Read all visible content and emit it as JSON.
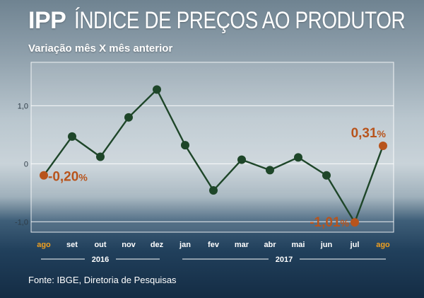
{
  "header": {
    "title_bold": "IPP",
    "title_rest": "ÍNDICE  DE PREÇOS AO PRODUTOR",
    "subtitle": "Variação mês X mês anterior",
    "source": "Fonte: IBGE, Diretoria de Pesquisas"
  },
  "colors": {
    "line": "#1e4629",
    "point": "#1e4629",
    "highlight": "#b8541c",
    "highlight_tick": "#f0a020",
    "gridline": "#ffffff"
  },
  "chart_data": {
    "type": "line",
    "categories": [
      "ago",
      "set",
      "out",
      "nov",
      "dez",
      "jan",
      "fev",
      "mar",
      "abr",
      "mai",
      "jun",
      "jul",
      "ago"
    ],
    "years": [
      {
        "label": "2016",
        "from": 0,
        "to": 4
      },
      {
        "label": "2017",
        "from": 5,
        "to": 12
      }
    ],
    "values": [
      -0.2,
      0.47,
      0.12,
      0.8,
      1.28,
      0.32,
      -0.46,
      0.07,
      -0.11,
      0.11,
      -0.2,
      -1.01,
      0.31
    ],
    "highlight_indices": [
      0,
      11,
      12
    ],
    "annotations": [
      {
        "index": 0,
        "label": "-0,20",
        "unit": "%"
      },
      {
        "index": 11,
        "label": "-1,01",
        "unit": "%"
      },
      {
        "index": 12,
        "label": "0,31",
        "unit": "%"
      }
    ],
    "yticks": [
      {
        "value": 1.0,
        "label": "1,0"
      },
      {
        "value": 0.0,
        "label": "0"
      },
      {
        "value": -1.0,
        "label": "-1,0"
      }
    ],
    "ylim": [
      -1.18,
      1.75
    ],
    "grid": true,
    "xlabel": "",
    "ylabel": ""
  }
}
